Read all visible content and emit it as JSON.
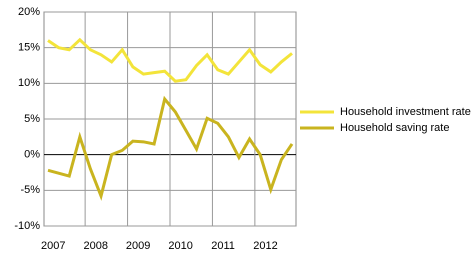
{
  "chart_data": {
    "type": "line",
    "categories": [
      "2007",
      null,
      null,
      null,
      "2008",
      null,
      null,
      null,
      "2009",
      null,
      null,
      null,
      "2010",
      null,
      null,
      null,
      "2011",
      null,
      null,
      null,
      "2012",
      null,
      null,
      null
    ],
    "series": [
      {
        "name": "Household investment rate",
        "color": "#f3e43a",
        "values": [
          16,
          15,
          14.7,
          16.1,
          14.7,
          14,
          13,
          14.7,
          12.3,
          11.3,
          11.5,
          11.7,
          10.3,
          10.5,
          12.5,
          14,
          11.9,
          11.3,
          13,
          14.7,
          12.6,
          11.6,
          13,
          14.2
        ]
      },
      {
        "name": "Household saving rate",
        "color": "#c9b41f",
        "values": [
          -2.2,
          -2.6,
          -3,
          2.5,
          -2,
          -5.8,
          0,
          0.6,
          1.9,
          1.8,
          1.5,
          7.8,
          6,
          3.4,
          0.8,
          5.1,
          4.4,
          2.5,
          -0.4,
          2.2,
          0,
          -4.9,
          -0.7,
          1.5
        ]
      }
    ],
    "ylim": [
      -10,
      20
    ],
    "yticks": [
      {
        "value": -10,
        "label": "-10%"
      },
      {
        "value": -5,
        "label": "-5%"
      },
      {
        "value": 0,
        "label": "0%"
      },
      {
        "value": 5,
        "label": "5%"
      },
      {
        "value": 10,
        "label": "10%"
      },
      {
        "value": 15,
        "label": "15%"
      },
      {
        "value": 20,
        "label": "20%"
      }
    ],
    "grid": true
  }
}
